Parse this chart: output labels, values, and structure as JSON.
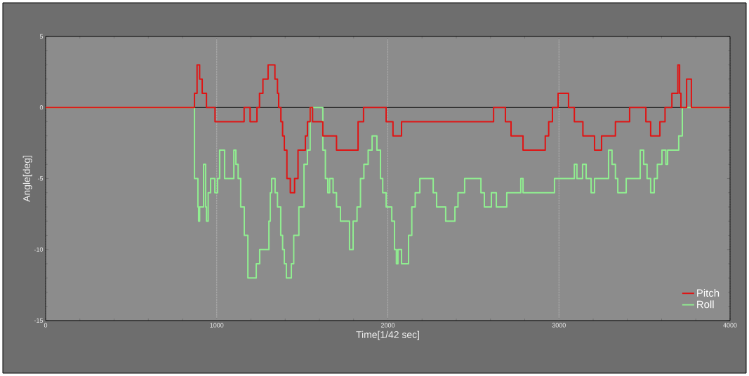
{
  "chart_data": {
    "type": "step",
    "xlabel": "Time[1/42 sec]",
    "ylabel": "Angle[deg]",
    "xlim": [
      0,
      4000
    ],
    "ylim": [
      -15,
      5
    ],
    "xticks": [
      0,
      1000,
      2000,
      3000,
      4000
    ],
    "yticks": [
      -15,
      -10,
      -5,
      0,
      5
    ],
    "grid": "x",
    "legend": "bottom right",
    "marker": "none",
    "line_style": "solid",
    "ref_lines": [
      {
        "axis": "y",
        "value": 0,
        "color": "#000000"
      }
    ],
    "series": [
      {
        "name": "Pitch",
        "color": "#e01414",
        "x": [
          0,
          870,
          885,
          900,
          915,
          940,
          990,
          1160,
          1195,
          1235,
          1250,
          1270,
          1300,
          1340,
          1355,
          1362,
          1375,
          1385,
          1395,
          1410,
          1430,
          1455,
          1475,
          1518,
          1530,
          1546,
          1560,
          1620,
          1700,
          1826,
          1858,
          1990,
          2030,
          2080,
          2618,
          2687,
          2720,
          2790,
          2920,
          2940,
          2962,
          2995,
          3056,
          3090,
          3140,
          3208,
          3249,
          3330,
          3413,
          3508,
          3536,
          3590,
          3620,
          3660,
          3695,
          3705,
          3713,
          3746,
          3774,
          4000
        ],
        "values": [
          0,
          1,
          3,
          2,
          1,
          0,
          -1,
          0,
          -1,
          0,
          1,
          2,
          3,
          2,
          1,
          0,
          -1,
          -2,
          -3,
          -5,
          -6,
          -5,
          -3,
          -2,
          -1,
          0,
          -1,
          -2,
          -3,
          -1,
          0,
          -1,
          -2,
          -1,
          0,
          -1,
          -2,
          -3,
          -2,
          -1,
          0,
          1,
          0,
          -1,
          -2,
          -3,
          -2,
          -1,
          0,
          -1,
          -2,
          -1,
          0,
          1,
          3,
          1,
          0,
          2,
          0,
          0
        ]
      },
      {
        "name": "Roll",
        "color": "#90ee90",
        "x": [
          0,
          870,
          890,
          894,
          900,
          923,
          935,
          940,
          950,
          964,
          989,
          1005,
          1017,
          1046,
          1100,
          1112,
          1125,
          1140,
          1161,
          1182,
          1231,
          1251,
          1305,
          1313,
          1321,
          1341,
          1355,
          1374,
          1385,
          1395,
          1407,
          1436,
          1450,
          1480,
          1510,
          1530,
          1546,
          1620,
          1635,
          1649,
          1660,
          1680,
          1700,
          1723,
          1776,
          1797,
          1820,
          1840,
          1860,
          1885,
          1908,
          1936,
          1957,
          1970,
          1990,
          2023,
          2039,
          2050,
          2059,
          2080,
          2121,
          2140,
          2160,
          2187,
          2265,
          2285,
          2338,
          2392,
          2410,
          2449,
          2544,
          2564,
          2605,
          2634,
          2695,
          2777,
          2790,
          2974,
          3090,
          3105,
          3138,
          3159,
          3188,
          3208,
          3290,
          3310,
          3330,
          3344,
          3393,
          3475,
          3495,
          3515,
          3536,
          3557,
          3575,
          3602,
          3625,
          3635,
          3700,
          3721,
          4000
        ],
        "values": [
          0,
          -5,
          -7,
          -8,
          -7,
          -4,
          -7,
          -8,
          -6,
          -5,
          -6,
          -5,
          -3,
          -5,
          -3,
          -4,
          -5,
          -7,
          -9,
          -12,
          -11,
          -10,
          -8,
          -6,
          -5,
          -6,
          -7,
          -9,
          -10,
          -11,
          -12,
          -11,
          -9,
          -7,
          -4,
          -3,
          0,
          -3,
          -5,
          -6,
          -5,
          -6,
          -7,
          -8,
          -10,
          -8,
          -7,
          -5,
          -4,
          -3,
          -2,
          -3,
          -5,
          -6,
          -7,
          -8,
          -10,
          -11,
          -10,
          -11,
          -9,
          -7,
          -6,
          -5,
          -6,
          -7,
          -8,
          -7,
          -6,
          -5,
          -6,
          -7,
          -6,
          -7,
          -6,
          -5,
          -6,
          -5,
          -4,
          -5,
          -4,
          -5,
          -6,
          -5,
          -3,
          -4,
          -5,
          -6,
          -5,
          -3,
          -4,
          -5,
          -6,
          -5,
          -4,
          -3,
          -4,
          -3,
          -2,
          0,
          0
        ]
      }
    ]
  }
}
